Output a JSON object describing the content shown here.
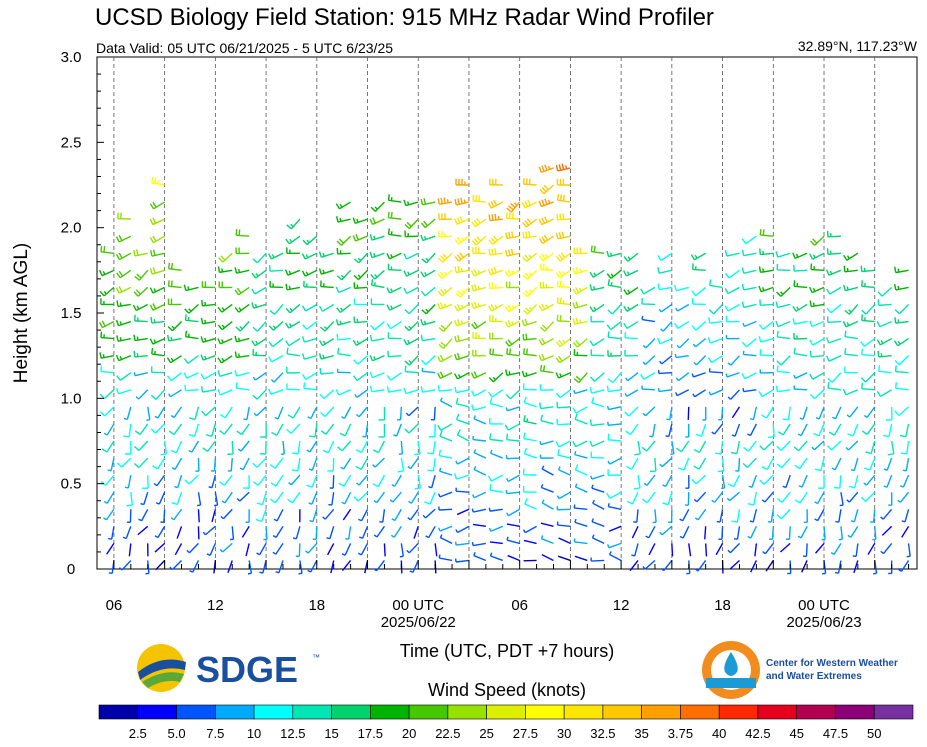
{
  "title": "UCSD Biology Field Station: 915 MHz Radar Wind Profiler",
  "subtitle": "Data Valid: 05 UTC 06/21/2025 - 5 UTC 6/23/25",
  "location": "32.89°N, 117.23°W",
  "logos": {
    "sdge": "SDGE",
    "sdge_tm": "™",
    "cw3e_line1": "Center for Western Weather",
    "cw3e_line2": "and Water Extremes"
  },
  "chart_data": {
    "type": "wind-barb",
    "ylabel": "Height (km AGL)",
    "xlabel": "Time (UTC, PDT +7 hours)",
    "ylim": [
      0,
      3.0
    ],
    "yticks": [
      "0",
      "0.5",
      "1.0",
      "1.5",
      "2.0",
      "2.5",
      "3.0"
    ],
    "xrange_hours": [
      5,
      53.5
    ],
    "xticks": [
      {
        "hour": 6,
        "label": "06",
        "sublabel": ""
      },
      {
        "hour": 12,
        "label": "12",
        "sublabel": ""
      },
      {
        "hour": 18,
        "label": "18",
        "sublabel": ""
      },
      {
        "hour": 24,
        "label": "00 UTC",
        "sublabel": "2025/06/22"
      },
      {
        "hour": 30,
        "label": "06",
        "sublabel": ""
      },
      {
        "hour": 36,
        "label": "12",
        "sublabel": ""
      },
      {
        "hour": 42,
        "label": "18",
        "sublabel": ""
      },
      {
        "hour": 48,
        "label": "00 UTC",
        "sublabel": "2025/06/23"
      }
    ],
    "colorbar_title": "Wind Speed (knots)",
    "colorbar_labels": [
      "2.5",
      "5.0",
      "7.5",
      "10",
      "12.5",
      "15",
      "17.5",
      "20",
      "22.5",
      "25",
      "27.5",
      "30",
      "32.5",
      "35",
      "3.75",
      "40",
      "42.5",
      "45",
      "47.5",
      "50"
    ],
    "colorbar_colors": [
      "#0000aa",
      "#0000ff",
      "#0055ff",
      "#00aaff",
      "#00ffff",
      "#00e6b4",
      "#00d26e",
      "#00b400",
      "#46c800",
      "#96e100",
      "#dcf000",
      "#ffff00",
      "#ffe600",
      "#ffc800",
      "#ffa000",
      "#ff6e00",
      "#ff2800",
      "#e6001e",
      "#b40050",
      "#8c0078",
      "#7830a0"
    ],
    "grid": "dashed vertical lines every 3 hours",
    "profile_hours": [
      6,
      7,
      8,
      9,
      10,
      11,
      12,
      13,
      14,
      15,
      16,
      17,
      18,
      19,
      20,
      21,
      22,
      23,
      24,
      25,
      26,
      27,
      28,
      29,
      30,
      31,
      32,
      33,
      34,
      35,
      36,
      37,
      38,
      39,
      40,
      41,
      42,
      43,
      44,
      45,
      46,
      47,
      48,
      49,
      50,
      51,
      52,
      53
    ],
    "barb_heights_km": [
      0.05,
      0.15,
      0.25,
      0.35,
      0.45,
      0.55,
      0.65,
      0.75,
      0.85,
      0.95,
      1.05,
      1.15,
      1.25,
      1.35,
      1.45,
      1.55,
      1.65,
      1.75,
      1.85,
      1.95,
      2.05,
      2.15,
      2.25,
      2.35
    ]
  }
}
